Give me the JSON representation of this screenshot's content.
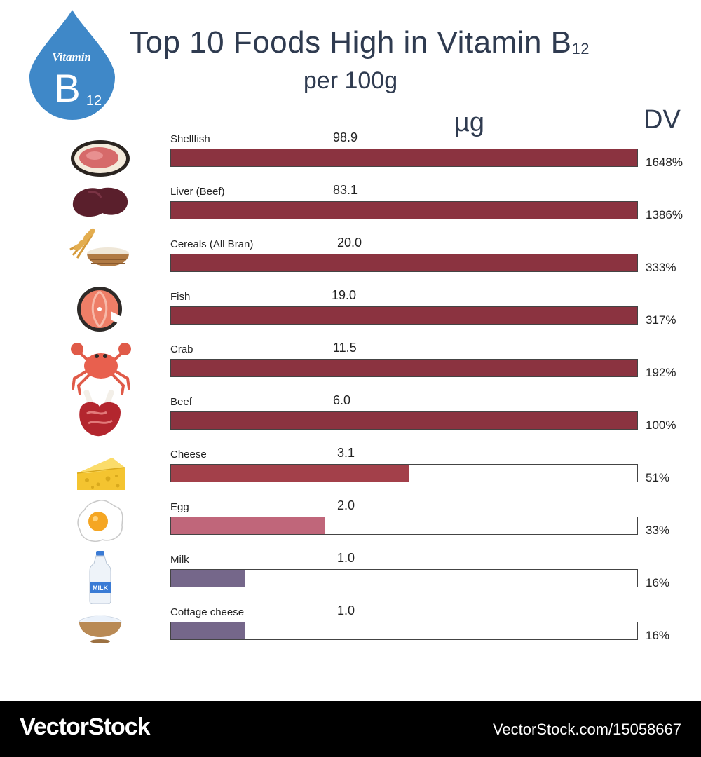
{
  "badge": {
    "line1": "Vitamin",
    "big": "B",
    "sub": "12"
  },
  "header": {
    "title_main": "Top 10 Foods High in Vitamin B",
    "title_sub": "12",
    "subtitle": "per 100g"
  },
  "chart_data": {
    "type": "bar",
    "orientation": "horizontal",
    "title": "Top 10 Foods High in Vitamin B12",
    "subtitle": "per 100g",
    "value_column_label": "µg",
    "dv_column_label": "DV",
    "max_dv_percent": 100,
    "categories": [
      "Shellfish",
      "Liver (Beef)",
      "Cereals (All Bran)",
      "Fish",
      "Crab",
      "Beef",
      "Cheese",
      "Egg",
      "Milk",
      "Cottage cheese"
    ],
    "values": [
      "98.9",
      "83.1",
      "20.0",
      "19.0",
      "11.5",
      "6.0",
      "3.1",
      "2.0",
      "1.0",
      "1.0"
    ],
    "dv": [
      "1648%",
      "1386%",
      "333%",
      "317%",
      "192%",
      "100%",
      "51%",
      "33%",
      "16%",
      "16%"
    ],
    "dv_percent": [
      1648,
      1386,
      333,
      317,
      192,
      100,
      51,
      33,
      16,
      16
    ],
    "bar_colors": [
      "#8b3340",
      "#8b3340",
      "#8b3340",
      "#8b3340",
      "#8b3340",
      "#8b3340",
      "#a3404a",
      "#c0667a",
      "#75678a",
      "#75678a"
    ],
    "icons": [
      "shellfish-icon",
      "liver-icon",
      "cereal-bowl-icon",
      "fish-steak-icon",
      "crab-icon",
      "beef-icon",
      "cheese-icon",
      "egg-icon",
      "milk-bottle-icon",
      "cottage-cheese-icon"
    ]
  },
  "footer": {
    "logo": "VectorStock",
    "url": "VectorStock.com/15058667"
  }
}
